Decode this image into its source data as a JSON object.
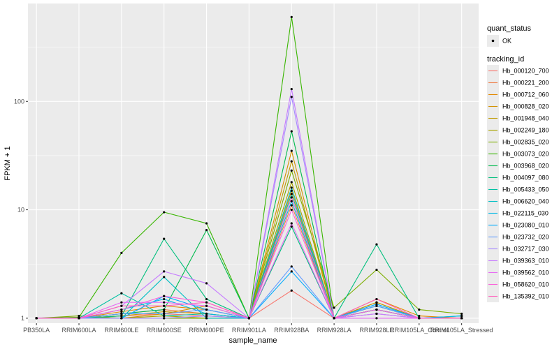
{
  "chart_data": {
    "type": "line",
    "y_scale": "log10",
    "xlabel": "sample_name",
    "ylabel": "FPKM + 1",
    "categories": [
      "PB350LA",
      "RRIM600LA",
      "RRIM600LE",
      "RRIM600SE",
      "RRIM600PE",
      "RRIM901LA",
      "RRIM928BA",
      "RRIM928LA",
      "RRIM928LE",
      "RRIM105LA_Control",
      "RRIM105LA_Stressed"
    ],
    "ylim": [
      0.9,
      800
    ],
    "y_ticks": [
      {
        "value": 1,
        "label": "1"
      },
      {
        "value": 10,
        "label": "10"
      },
      {
        "value": 100,
        "label": "100"
      }
    ],
    "quant_legend": {
      "title": "quant_status",
      "entries": [
        "OK"
      ]
    },
    "legend_title": "tracking_id",
    "series": [
      {
        "name": "Hb_000120_700",
        "color": "#F8766D",
        "values": [
          1,
          1.0,
          1.05,
          1.1,
          1.05,
          1,
          1.8,
          1,
          1.1,
          1.0,
          1.0
        ]
      },
      {
        "name": "Hb_000221_200",
        "color": "#EF7F49",
        "values": [
          1,
          1.0,
          1.1,
          1.2,
          1.1,
          1,
          11,
          1,
          1.4,
          1.0,
          1.0
        ]
      },
      {
        "name": "Hb_000712_060",
        "color": "#E38900",
        "values": [
          1,
          1.0,
          1.15,
          1.3,
          1.2,
          1,
          15,
          1,
          1.5,
          1.05,
          1.0
        ]
      },
      {
        "name": "Hb_000828_020",
        "color": "#D39200",
        "values": [
          1,
          1.02,
          1.0,
          1.1,
          1.3,
          1,
          35,
          1,
          1.3,
          1.0,
          1.0
        ]
      },
      {
        "name": "Hb_001948_040",
        "color": "#C09B00",
        "values": [
          1,
          1.0,
          1.05,
          1.15,
          1.1,
          1,
          28,
          1,
          1.4,
          1.0,
          1.0
        ]
      },
      {
        "name": "Hb_002249_180",
        "color": "#A8A400",
        "values": [
          1,
          1.0,
          1.0,
          1.05,
          1.0,
          1,
          18,
          1,
          1.2,
          1.0,
          1.0
        ]
      },
      {
        "name": "Hb_002835_020",
        "color": "#7CAE00",
        "values": [
          1,
          1.05,
          1.0,
          1.0,
          1.0,
          1,
          23,
          1.25,
          2.8,
          1.2,
          1.1
        ]
      },
      {
        "name": "Hb_003073_020",
        "color": "#39B600",
        "values": [
          1,
          1.02,
          4.0,
          9.5,
          7.5,
          1,
          600,
          1,
          1.2,
          1.0,
          1.0
        ]
      },
      {
        "name": "Hb_003968_020",
        "color": "#00BB4E",
        "values": [
          1,
          1.0,
          1.1,
          1.2,
          6.5,
          1,
          53,
          1,
          1.2,
          1.0,
          1.0
        ]
      },
      {
        "name": "Hb_004097_080",
        "color": "#00BF7D",
        "values": [
          1,
          1.0,
          1.05,
          5.4,
          1.5,
          1,
          7.0,
          1,
          4.8,
          1.0,
          1.0
        ]
      },
      {
        "name": "Hb_005433_050",
        "color": "#00C1A3",
        "values": [
          1,
          1.0,
          1.7,
          1.05,
          1.1,
          1,
          14,
          1,
          1.3,
          1.0,
          1.05
        ]
      },
      {
        "name": "Hb_006620_040",
        "color": "#00BFC4",
        "values": [
          1,
          1.0,
          1.0,
          2.4,
          1.0,
          1,
          16,
          1,
          1.3,
          1.0,
          1.0
        ]
      },
      {
        "name": "Hb_022115_030",
        "color": "#00B8E5",
        "values": [
          1,
          1.0,
          1.2,
          1.5,
          1.1,
          1,
          12,
          1,
          1.2,
          1.0,
          1.05
        ]
      },
      {
        "name": "Hb_023080_010",
        "color": "#00ABFD",
        "values": [
          1,
          1.0,
          1.0,
          1.6,
          1.2,
          1,
          2.7,
          1,
          1.35,
          1.0,
          1.0
        ]
      },
      {
        "name": "Hb_023732_020",
        "color": "#619CFF",
        "values": [
          1,
          1.0,
          1.1,
          1.1,
          1.2,
          1,
          3.0,
          1,
          1.3,
          1.0,
          1.0
        ]
      },
      {
        "name": "Hb_032717_030",
        "color": "#A58AFF",
        "values": [
          1,
          1.0,
          1.0,
          1.0,
          1.05,
          1,
          110,
          1,
          1.1,
          1.0,
          1.0
        ]
      },
      {
        "name": "Hb_039363_010",
        "color": "#C77CFF",
        "values": [
          1,
          1.0,
          1.3,
          2.7,
          2.1,
          1,
          130,
          1,
          1.1,
          1.0,
          1.0
        ]
      },
      {
        "name": "Hb_039562_010",
        "color": "#E76BF3",
        "values": [
          1,
          1.0,
          1.4,
          1.4,
          1.3,
          1,
          7.5,
          1,
          1.0,
          1.0,
          1.0
        ]
      },
      {
        "name": "Hb_058620_010",
        "color": "#FA62DB",
        "values": [
          1,
          1.0,
          1.2,
          1.6,
          1.4,
          1,
          10,
          1,
          1.2,
          1.0,
          1.0
        ]
      },
      {
        "name": "Hb_135392_010",
        "color": "#FF62BC",
        "values": [
          1,
          1.0,
          1.3,
          1.3,
          1.4,
          1,
          13,
          1,
          1.5,
          1.0,
          1.0
        ]
      }
    ]
  },
  "colors": {
    "panel_bg": "#EBEBEB",
    "grid_major": "#FFFFFF",
    "point": "#000000"
  }
}
